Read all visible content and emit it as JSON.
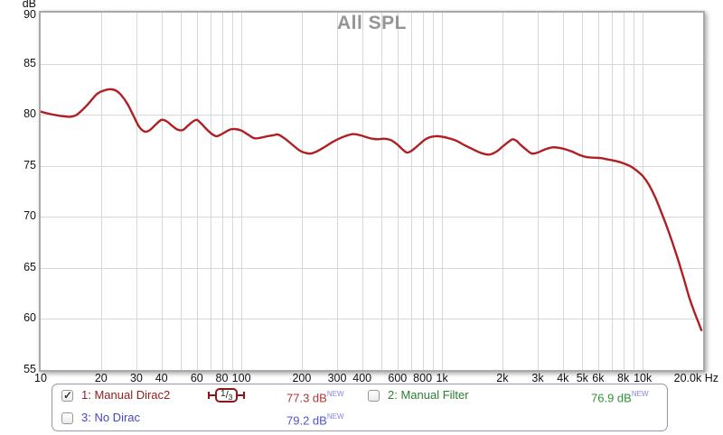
{
  "chart_data": {
    "type": "line",
    "title": "All SPL",
    "title_color": "#959595",
    "xlabel": "Hz",
    "ylabel": "dB",
    "xscale": "log",
    "xlim": [
      10,
      20000
    ],
    "ylim": [
      55,
      90
    ],
    "grid_color": "#d7d7d7",
    "y_ticks": [
      90,
      85,
      80,
      75,
      70,
      65,
      60,
      55
    ],
    "y_grid": [
      85,
      80,
      75,
      70,
      65,
      60
    ],
    "x_grid": [
      20,
      30,
      40,
      50,
      60,
      70,
      80,
      90,
      100,
      200,
      300,
      400,
      500,
      600,
      700,
      800,
      900,
      1000,
      2000,
      3000,
      4000,
      5000,
      6000,
      7000,
      8000,
      9000,
      10000
    ],
    "x_ticks": [
      {
        "f": 10,
        "label": "10"
      },
      {
        "f": 20,
        "label": "20"
      },
      {
        "f": 30,
        "label": "30"
      },
      {
        "f": 40,
        "label": "40"
      },
      {
        "f": 60,
        "label": "60"
      },
      {
        "f": 80,
        "label": "80"
      },
      {
        "f": 100,
        "label": "100"
      },
      {
        "f": 200,
        "label": "200"
      },
      {
        "f": 300,
        "label": "300"
      },
      {
        "f": 400,
        "label": "400"
      },
      {
        "f": 600,
        "label": "600"
      },
      {
        "f": 800,
        "label": "800"
      },
      {
        "f": 1000,
        "label": "1k"
      },
      {
        "f": 2000,
        "label": "2k"
      },
      {
        "f": 3000,
        "label": "3k"
      },
      {
        "f": 4000,
        "label": "4k"
      },
      {
        "f": 5000,
        "label": "5k"
      },
      {
        "f": 6000,
        "label": "6k"
      },
      {
        "f": 8000,
        "label": "8k"
      },
      {
        "f": 10000,
        "label": "10k"
      },
      {
        "f": 20000,
        "label": "20.0k"
      }
    ],
    "series": [
      {
        "name": "1: Manual Dirac2",
        "color": "#b01f23",
        "points": [
          [
            10,
            80.3
          ],
          [
            11,
            80.1
          ],
          [
            12,
            79.95
          ],
          [
            13,
            79.85
          ],
          [
            14,
            79.8
          ],
          [
            15,
            79.95
          ],
          [
            16,
            80.4
          ],
          [
            17.5,
            81.2
          ],
          [
            19,
            82.0
          ],
          [
            20.5,
            82.35
          ],
          [
            22,
            82.5
          ],
          [
            23.5,
            82.4
          ],
          [
            25,
            82.0
          ],
          [
            27,
            81.1
          ],
          [
            29,
            79.9
          ],
          [
            31,
            78.8
          ],
          [
            33,
            78.35
          ],
          [
            35,
            78.5
          ],
          [
            37.5,
            79.05
          ],
          [
            40,
            79.5
          ],
          [
            42.5,
            79.35
          ],
          [
            45,
            78.95
          ],
          [
            48,
            78.55
          ],
          [
            51,
            78.5
          ],
          [
            54,
            78.9
          ],
          [
            57,
            79.3
          ],
          [
            60,
            79.5
          ],
          [
            63,
            79.15
          ],
          [
            67,
            78.6
          ],
          [
            71,
            78.15
          ],
          [
            75,
            77.9
          ],
          [
            79,
            78.05
          ],
          [
            83,
            78.3
          ],
          [
            88,
            78.55
          ],
          [
            93,
            78.6
          ],
          [
            100,
            78.45
          ],
          [
            108,
            78.05
          ],
          [
            116,
            77.7
          ],
          [
            125,
            77.75
          ],
          [
            135,
            77.9
          ],
          [
            145,
            78.0
          ],
          [
            153,
            78.05
          ],
          [
            165,
            77.65
          ],
          [
            180,
            77.05
          ],
          [
            195,
            76.5
          ],
          [
            210,
            76.25
          ],
          [
            222,
            76.2
          ],
          [
            237,
            76.4
          ],
          [
            258,
            76.8
          ],
          [
            283,
            77.3
          ],
          [
            310,
            77.7
          ],
          [
            335,
            77.95
          ],
          [
            360,
            78.1
          ],
          [
            390,
            78.0
          ],
          [
            420,
            77.8
          ],
          [
            450,
            77.65
          ],
          [
            480,
            77.6
          ],
          [
            515,
            77.65
          ],
          [
            550,
            77.55
          ],
          [
            580,
            77.3
          ],
          [
            610,
            76.95
          ],
          [
            640,
            76.55
          ],
          [
            668,
            76.3
          ],
          [
            695,
            76.4
          ],
          [
            730,
            76.7
          ],
          [
            770,
            77.1
          ],
          [
            820,
            77.55
          ],
          [
            870,
            77.8
          ],
          [
            930,
            77.9
          ],
          [
            1000,
            77.85
          ],
          [
            1080,
            77.7
          ],
          [
            1180,
            77.45
          ],
          [
            1300,
            77.0
          ],
          [
            1430,
            76.6
          ],
          [
            1570,
            76.25
          ],
          [
            1720,
            76.1
          ],
          [
            1870,
            76.4
          ],
          [
            2020,
            76.95
          ],
          [
            2180,
            77.45
          ],
          [
            2250,
            77.6
          ],
          [
            2350,
            77.45
          ],
          [
            2450,
            77.1
          ],
          [
            2620,
            76.6
          ],
          [
            2800,
            76.2
          ],
          [
            3000,
            76.3
          ],
          [
            3250,
            76.6
          ],
          [
            3550,
            76.8
          ],
          [
            3850,
            76.75
          ],
          [
            4150,
            76.6
          ],
          [
            4500,
            76.35
          ],
          [
            4850,
            76.05
          ],
          [
            5250,
            75.85
          ],
          [
            5700,
            75.8
          ],
          [
            6200,
            75.75
          ],
          [
            6800,
            75.6
          ],
          [
            7400,
            75.45
          ],
          [
            8000,
            75.25
          ],
          [
            8700,
            74.95
          ],
          [
            9300,
            74.55
          ],
          [
            10000,
            74.0
          ],
          [
            10700,
            73.2
          ],
          [
            11500,
            72.0
          ],
          [
            12300,
            70.6
          ],
          [
            13100,
            69.2
          ],
          [
            14000,
            67.6
          ],
          [
            15000,
            65.8
          ],
          [
            16000,
            64.0
          ],
          [
            17000,
            62.2
          ],
          [
            18000,
            60.8
          ],
          [
            19000,
            59.6
          ],
          [
            19600,
            58.9
          ]
        ]
      }
    ]
  },
  "legend": {
    "check_glyph": "✓",
    "flag_color": "#8585ea",
    "smoothing": {
      "num": "1",
      "slash": "/",
      "den": "3"
    },
    "entries": [
      {
        "checked": true,
        "label": "1: Manual Dirac2",
        "value": "77.3 dB",
        "flag": "NEW",
        "color": "#8f1d1d",
        "value_color": "#b23535"
      },
      {
        "checked": false,
        "label": "2: Manual Filter",
        "value": "76.9 dB",
        "flag": "NEW",
        "color": "#2c7d2f",
        "value_color": "#2f9136"
      },
      {
        "checked": false,
        "label": "3: No Dirac",
        "value": "79.2 dB",
        "flag": "NEW",
        "color": "#4646c2",
        "value_color": "#5353cf"
      }
    ]
  }
}
